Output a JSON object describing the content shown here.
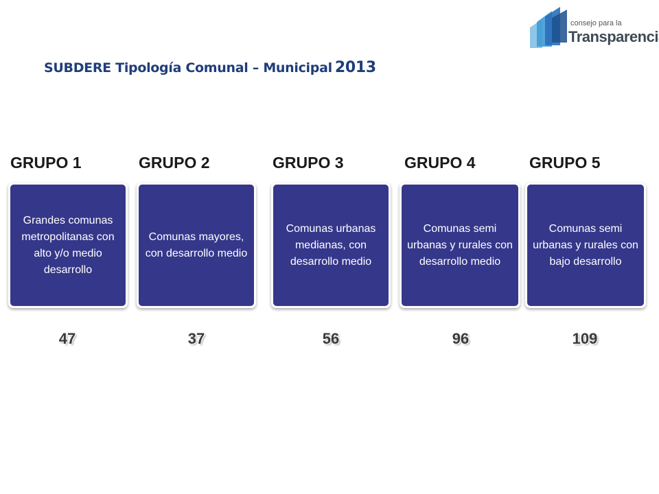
{
  "logo": {
    "small_text": "consejo para la",
    "big_text": "Transparencia"
  },
  "title": {
    "text": "SUBDERE Tipología Comunal – Municipal",
    "year": "2013"
  },
  "groups": [
    {
      "label": "GRUPO 1",
      "description": "Grandes comunas metropolitanas con alto y/o medio desarrollo",
      "count": "47"
    },
    {
      "label": "GRUPO 2",
      "description": "Comunas mayores, con desarrollo medio",
      "count": "37"
    },
    {
      "label": "GRUPO 3",
      "description": "Comunas urbanas medianas, con desarrollo medio",
      "count": "56"
    },
    {
      "label": "GRUPO 4",
      "description": "Comunas semi urbanas y rurales con desarrollo medio",
      "count": "96"
    },
    {
      "label": "GRUPO 5",
      "description": "Comunas semi urbanas y rurales con bajo desarrollo",
      "count": "109"
    }
  ],
  "colors": {
    "box_fill": "#35378a",
    "title": "#1f3d7a",
    "logo_blue": "#2a6fb8"
  }
}
